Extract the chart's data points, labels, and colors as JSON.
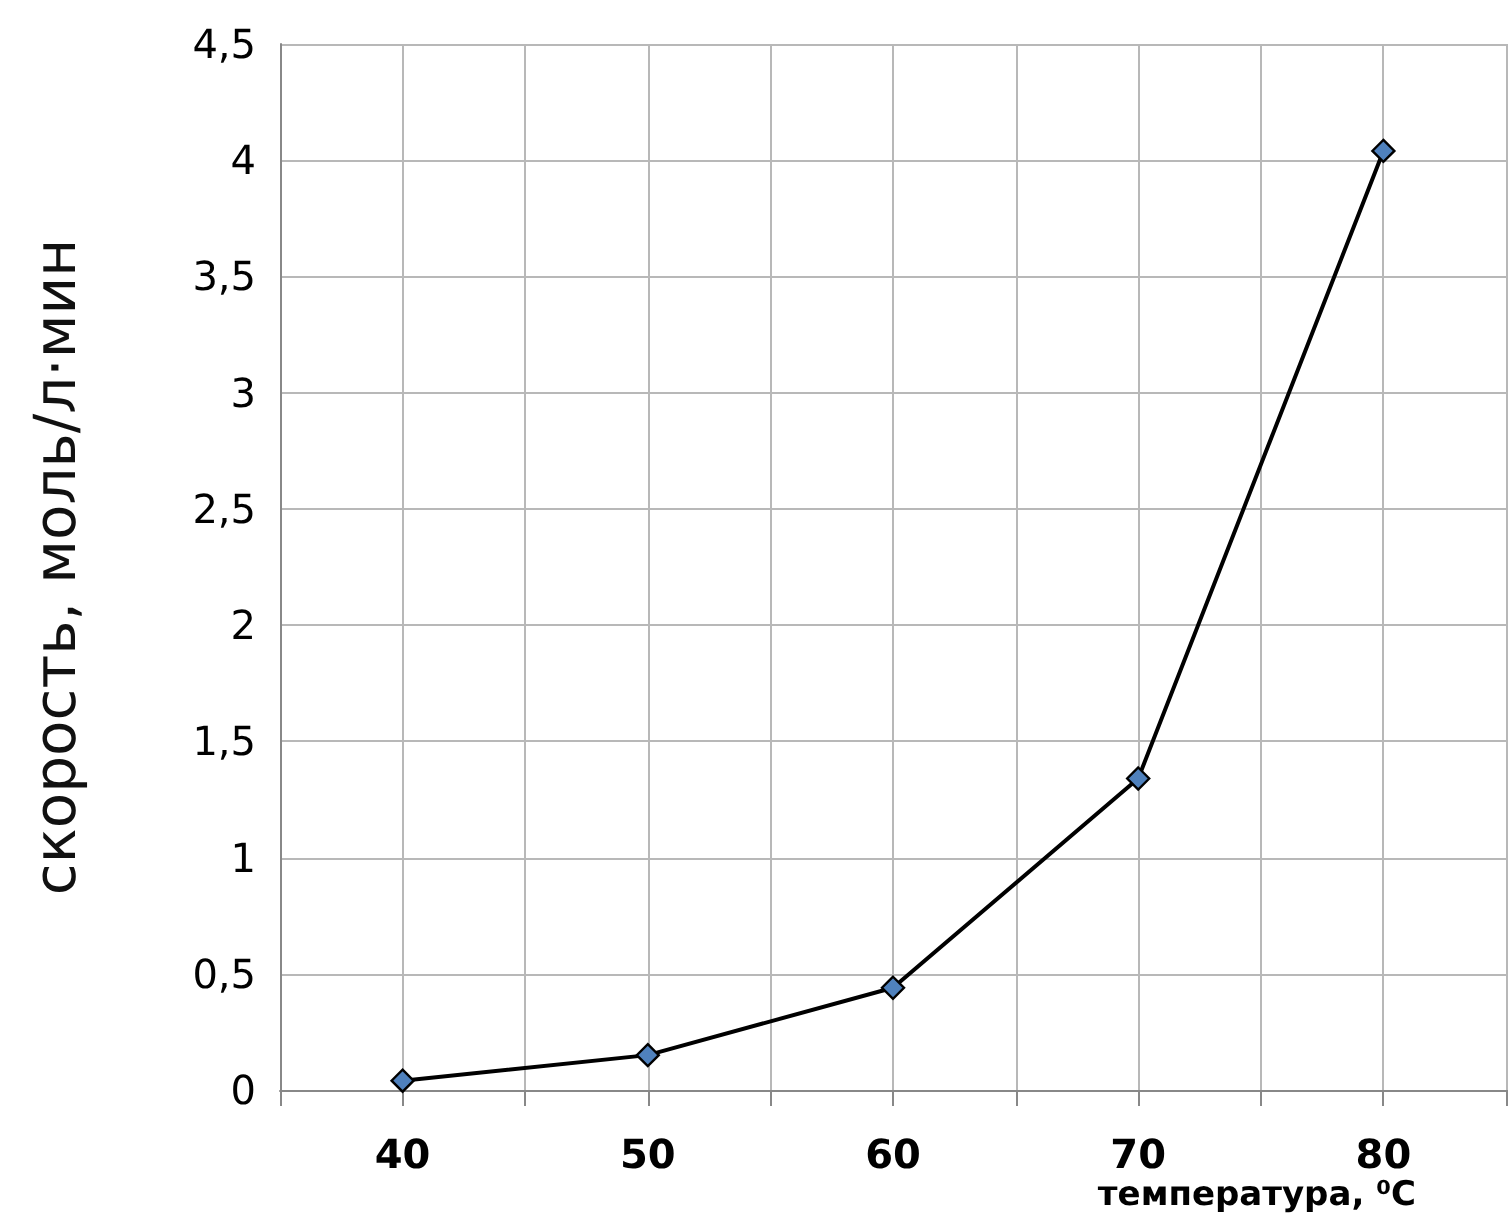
{
  "chart_data": {
    "type": "line",
    "xlabel": "температура, ⁰C",
    "ylabel": "скорость, моль/л·мин",
    "x": [
      40,
      50,
      60,
      70,
      80
    ],
    "series": [
      {
        "color": "#000000",
        "values": [
          0.04,
          0.15,
          0.44,
          1.34,
          4.04
        ]
      }
    ],
    "xlim": [
      35,
      85
    ],
    "xticks": [
      {
        "value": 35,
        "label": null
      },
      40,
      {
        "value": 45,
        "label": null
      },
      50,
      {
        "value": 55,
        "label": null
      },
      60,
      {
        "value": 65,
        "label": null
      },
      70,
      {
        "value": 75,
        "label": null
      },
      80,
      {
        "value": 85,
        "label": null
      }
    ],
    "ylim": [
      0,
      4.5
    ],
    "yticks": [
      0,
      {
        "value": 0.5,
        "label": "0,5"
      },
      1,
      {
        "value": 1.5,
        "label": "1,5"
      },
      2,
      {
        "value": 2.5,
        "label": "2,5"
      },
      3,
      {
        "value": 3.5,
        "label": "3,5"
      },
      4,
      {
        "value": 4.5,
        "label": "4,5"
      }
    ],
    "grid": true,
    "marker": "diamond",
    "line_style": "solid"
  }
}
